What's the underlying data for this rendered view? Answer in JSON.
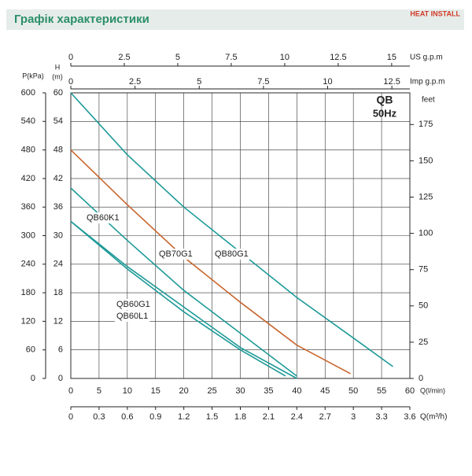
{
  "chart_data": {
    "type": "line",
    "title": "Графік характеристики",
    "logo": "HEAT INSTALL",
    "annotation": [
      "QB",
      "50Hz"
    ],
    "xlabel": "Q(l/min)",
    "xlim": [
      0,
      60
    ],
    "xticks": [
      0,
      5,
      10,
      15,
      20,
      25,
      30,
      35,
      40,
      45,
      50,
      55,
      60
    ],
    "ylabel": [
      "H",
      "(m)"
    ],
    "ylim": [
      0,
      60
    ],
    "yticks": [
      0,
      6,
      12,
      18,
      24,
      30,
      36,
      42,
      48,
      54,
      60
    ],
    "grid": true,
    "p_axis": {
      "label": "P(kPa)",
      "lim": [
        0,
        600
      ],
      "ticks": [
        0,
        60,
        120,
        180,
        240,
        300,
        360,
        420,
        480,
        540,
        600
      ]
    },
    "feet_axis": {
      "label": "feet",
      "lim": [
        0,
        196.85
      ],
      "ticks": [
        0,
        25,
        50,
        75,
        100,
        125,
        150,
        175
      ]
    },
    "us_axis": {
      "label": "US  g.p.m",
      "lim": [
        0,
        15.85
      ],
      "ticks": [
        0,
        2.5,
        5,
        7.5,
        10,
        12.5,
        15
      ]
    },
    "imp_axis": {
      "label": "Imp  g.p.m",
      "lim": [
        0,
        13.2
      ],
      "ticks": [
        0,
        2.5,
        5,
        7.5,
        10,
        12.5
      ]
    },
    "m3h_axis": {
      "label": "Q(m³/h)",
      "lim": [
        0,
        3.6
      ],
      "ticks": [
        0,
        0.3,
        0.6,
        0.9,
        1.2,
        1.5,
        1.8,
        2.1,
        2.4,
        2.7,
        3,
        3.3,
        3.6
      ]
    },
    "series": [
      {
        "name": "QB80G1",
        "color": "#1e9a98",
        "x": [
          0,
          10,
          20,
          30,
          40,
          50,
          57
        ],
        "values": [
          60,
          47,
          36,
          26.5,
          17,
          8.5,
          2.5
        ]
      },
      {
        "name": "QB70G1",
        "color": "#c8662e",
        "x": [
          0,
          10,
          20,
          30,
          40,
          49.5
        ],
        "values": [
          48,
          36.5,
          25.5,
          16,
          7,
          1
        ]
      },
      {
        "name": "QB60K1",
        "color": "#1e9a98",
        "x": [
          0,
          10,
          20,
          30,
          40
        ],
        "values": [
          40,
          29,
          18.5,
          9.5,
          0.5
        ]
      },
      {
        "name": "QB60G1",
        "color": "#1e9a98",
        "x": [
          0,
          10,
          20,
          30,
          40
        ],
        "values": [
          33,
          23.5,
          15,
          6.5,
          0
        ]
      },
      {
        "name": "QB60L1",
        "color": "#1e9a98",
        "x": [
          0,
          10,
          20,
          30,
          38
        ],
        "values": [
          33,
          23,
          14,
          6,
          0.5
        ]
      }
    ]
  }
}
